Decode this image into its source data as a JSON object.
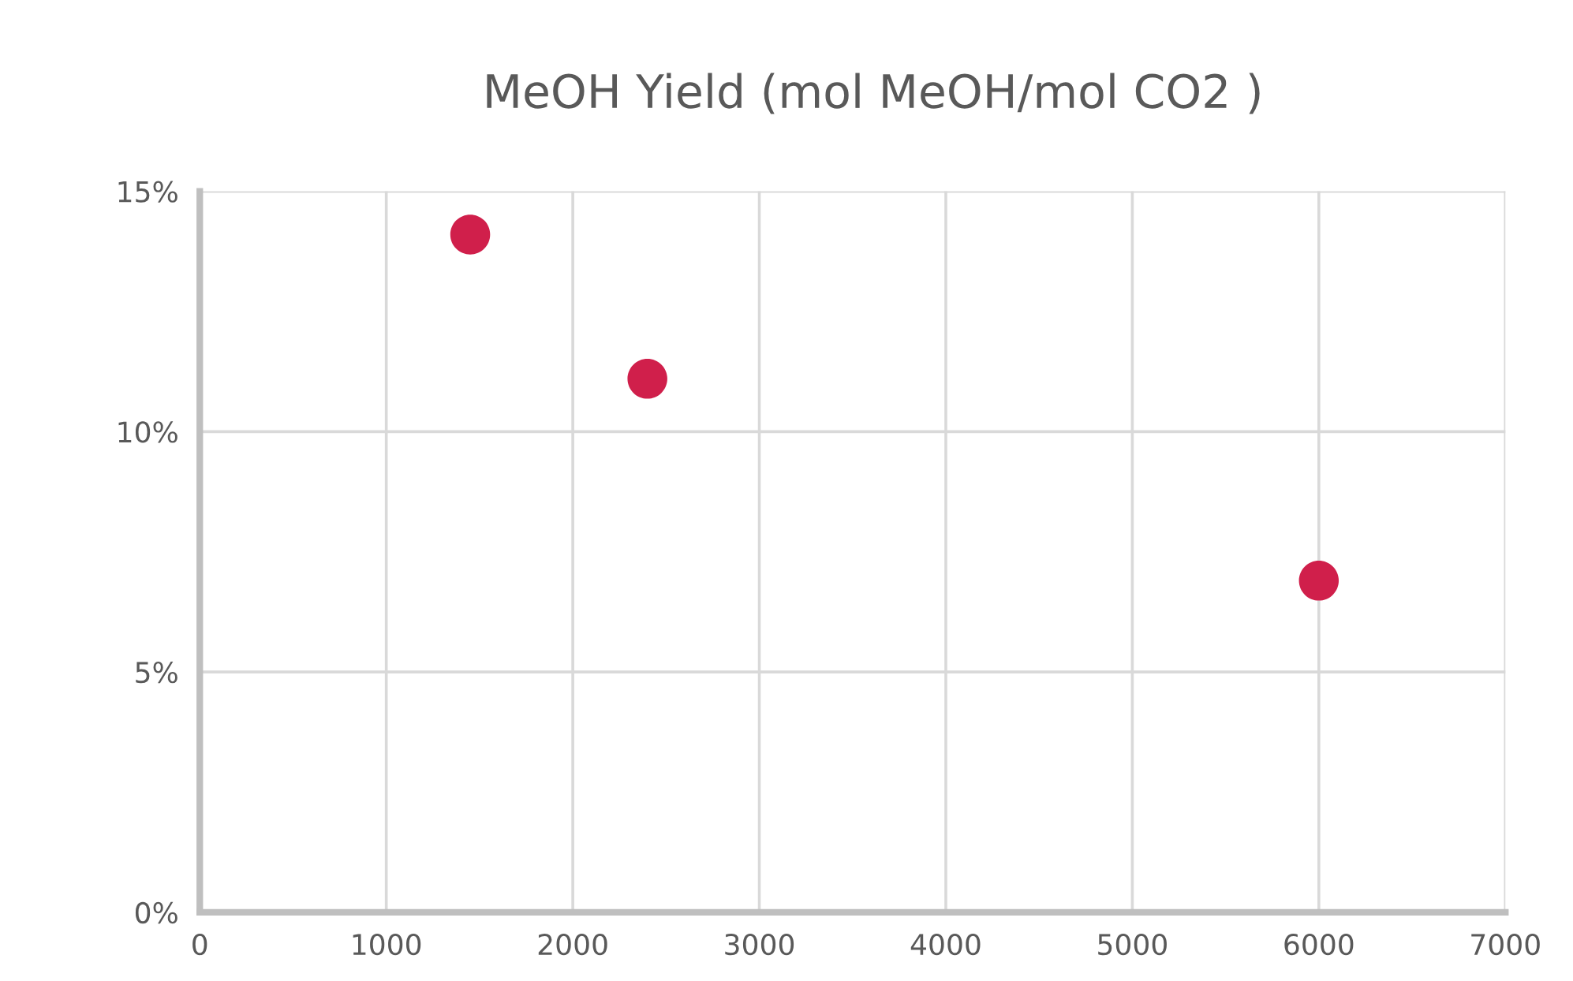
{
  "chart_data": {
    "type": "scatter",
    "title": "MeOH Yield (mol MeOH/mol CO2 )",
    "x": [
      1450,
      2400,
      6000
    ],
    "series": [
      {
        "color": "#d01f4b",
        "values": [
          14.1,
          11.1,
          6.9
        ]
      }
    ],
    "xlim": [
      0,
      7000
    ],
    "xticks": [
      0,
      1000,
      2000,
      3000,
      4000,
      5000,
      6000,
      7000
    ],
    "ylim": [
      0,
      15
    ],
    "yticks": [
      {
        "value": 0,
        "label": "0%"
      },
      {
        "value": 5,
        "label": "5%"
      },
      {
        "value": 10,
        "label": "10%"
      },
      {
        "value": 15,
        "label": "15%"
      }
    ],
    "grid": true,
    "marker": "circle"
  }
}
